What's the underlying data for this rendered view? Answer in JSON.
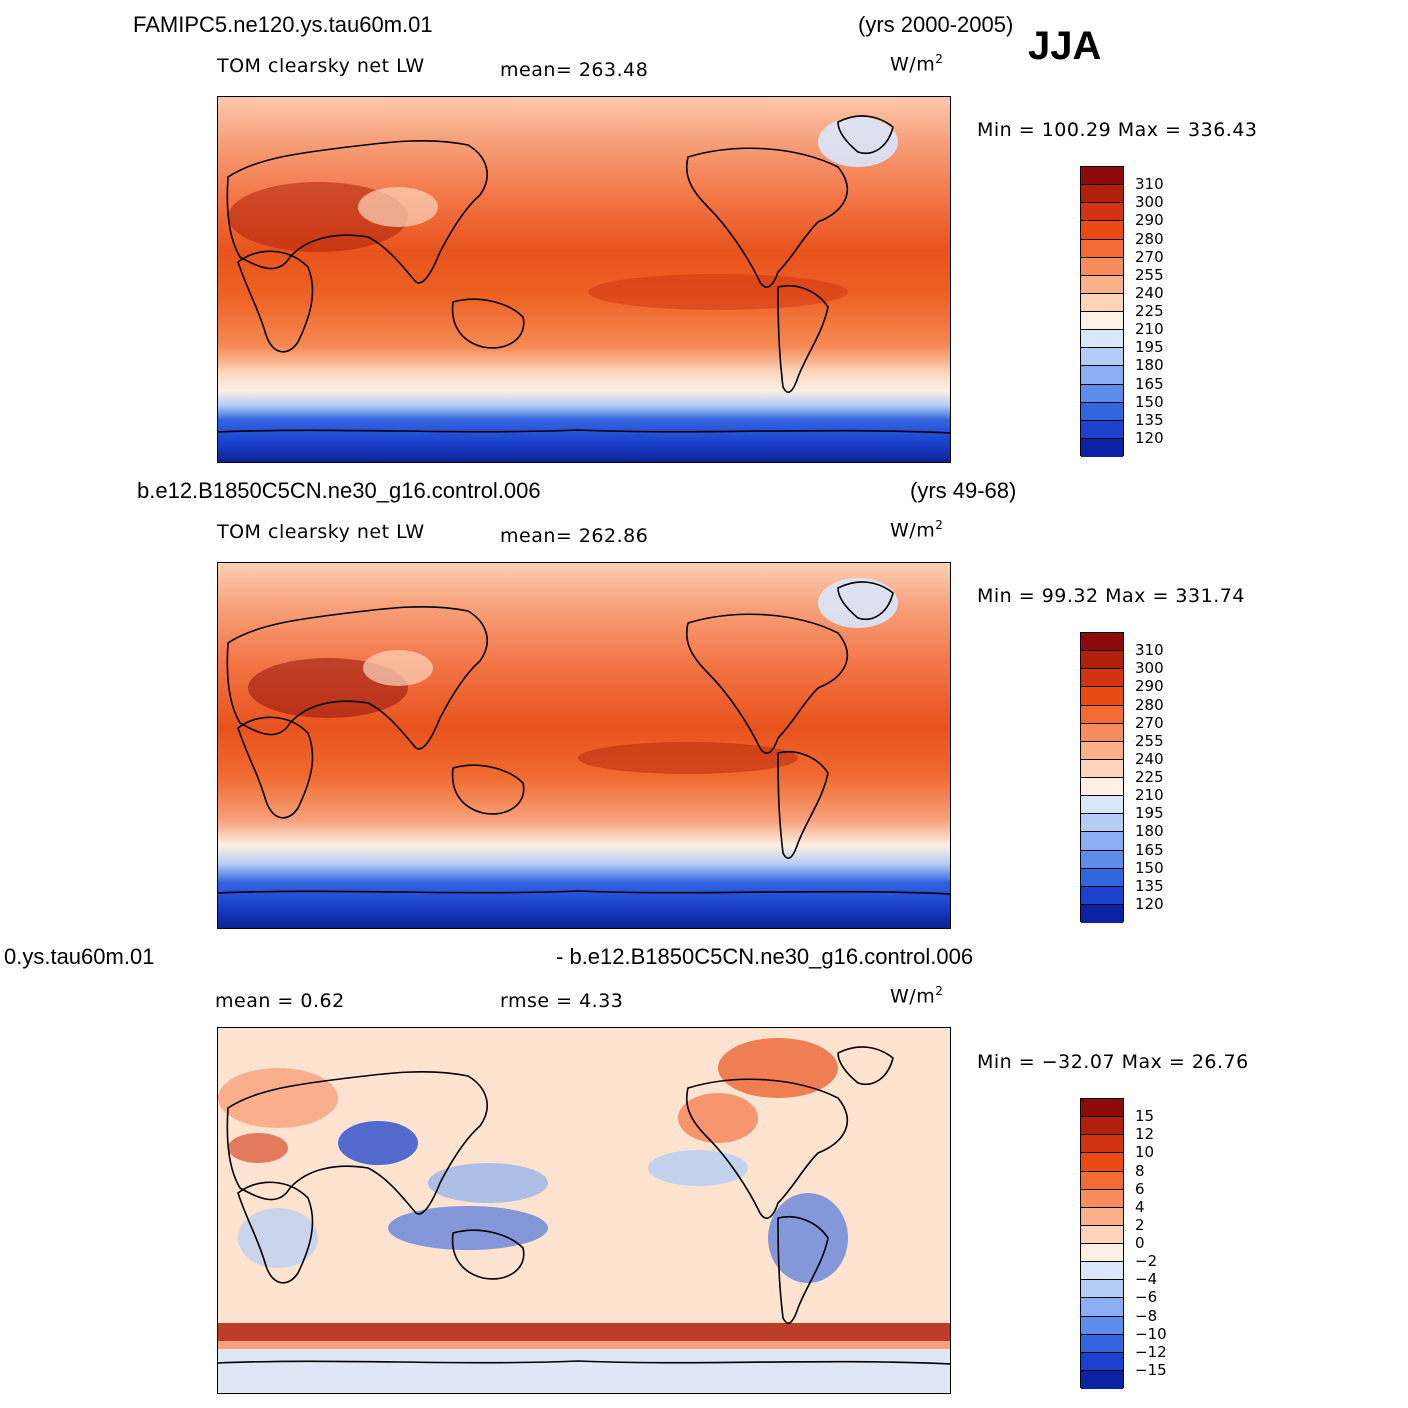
{
  "season": "JJA",
  "panels": [
    {
      "case": "FAMIPC5.ne120.ys.tau60m.01",
      "years": "(yrs 2000-2005)",
      "left_label": "TOM clearsky net LW",
      "mid_label": "mean=  263.48",
      "units": "W/m",
      "units_exp": "2",
      "minmax": "Min  =  100.29  Max  =  336.43",
      "colorbar": {
        "labels": [
          "310",
          "300",
          "290",
          "280",
          "270",
          "255",
          "240",
          "225",
          "210",
          "195",
          "180",
          "165",
          "150",
          "135",
          "120"
        ],
        "colors": [
          "#8c0a0a",
          "#b0200b",
          "#d23411",
          "#ea4a16",
          "#f36a33",
          "#f78d5c",
          "#fab189",
          "#fdd4b9",
          "#fdf0e4",
          "#d9e7fb",
          "#b4cdf6",
          "#8aaef1",
          "#5d8cea",
          "#3465e0",
          "#1a42cf",
          "#0b22a4"
        ]
      }
    },
    {
      "case": "b.e12.B1850C5CN.ne30_g16.control.006",
      "years": "(yrs 49-68)",
      "left_label": "TOM clearsky net LW",
      "mid_label": "mean=  262.86",
      "units": "W/m",
      "units_exp": "2",
      "minmax": "Min  =   99.32  Max  =  331.74",
      "colorbar": {
        "labels": [
          "310",
          "300",
          "290",
          "280",
          "270",
          "255",
          "240",
          "225",
          "210",
          "195",
          "180",
          "165",
          "150",
          "135",
          "120"
        ],
        "colors": [
          "#8c0a0a",
          "#b0200b",
          "#d23411",
          "#ea4a16",
          "#f36a33",
          "#f78d5c",
          "#fab189",
          "#fdd4b9",
          "#fdf0e4",
          "#d9e7fb",
          "#b4cdf6",
          "#8aaef1",
          "#5d8cea",
          "#3465e0",
          "#1a42cf",
          "#0b22a4"
        ]
      }
    },
    {
      "case_left": "0.ys.tau60m.01",
      "case_right": "- b.e12.B1850C5CN.ne30_g16.control.006",
      "left_label": "mean =    0.62",
      "mid_label": "rmse =    4.33",
      "units": "W/m",
      "units_exp": "2",
      "minmax": "Min  = −32.07  Max  =   26.76",
      "colorbar": {
        "labels": [
          "15",
          "12",
          "10",
          "8",
          "6",
          "4",
          "2",
          "0",
          "−2",
          "−4",
          "−6",
          "−8",
          "−10",
          "−12",
          "−15"
        ],
        "colors": [
          "#8c0a0a",
          "#b0200b",
          "#d23411",
          "#ea4a16",
          "#f36a33",
          "#f78d5c",
          "#fab189",
          "#fdd4b9",
          "#fdf0e4",
          "#d9e7fb",
          "#b4cdf6",
          "#8aaef1",
          "#5d8cea",
          "#3465e0",
          "#1a42cf",
          "#0b22a4"
        ]
      }
    }
  ]
}
